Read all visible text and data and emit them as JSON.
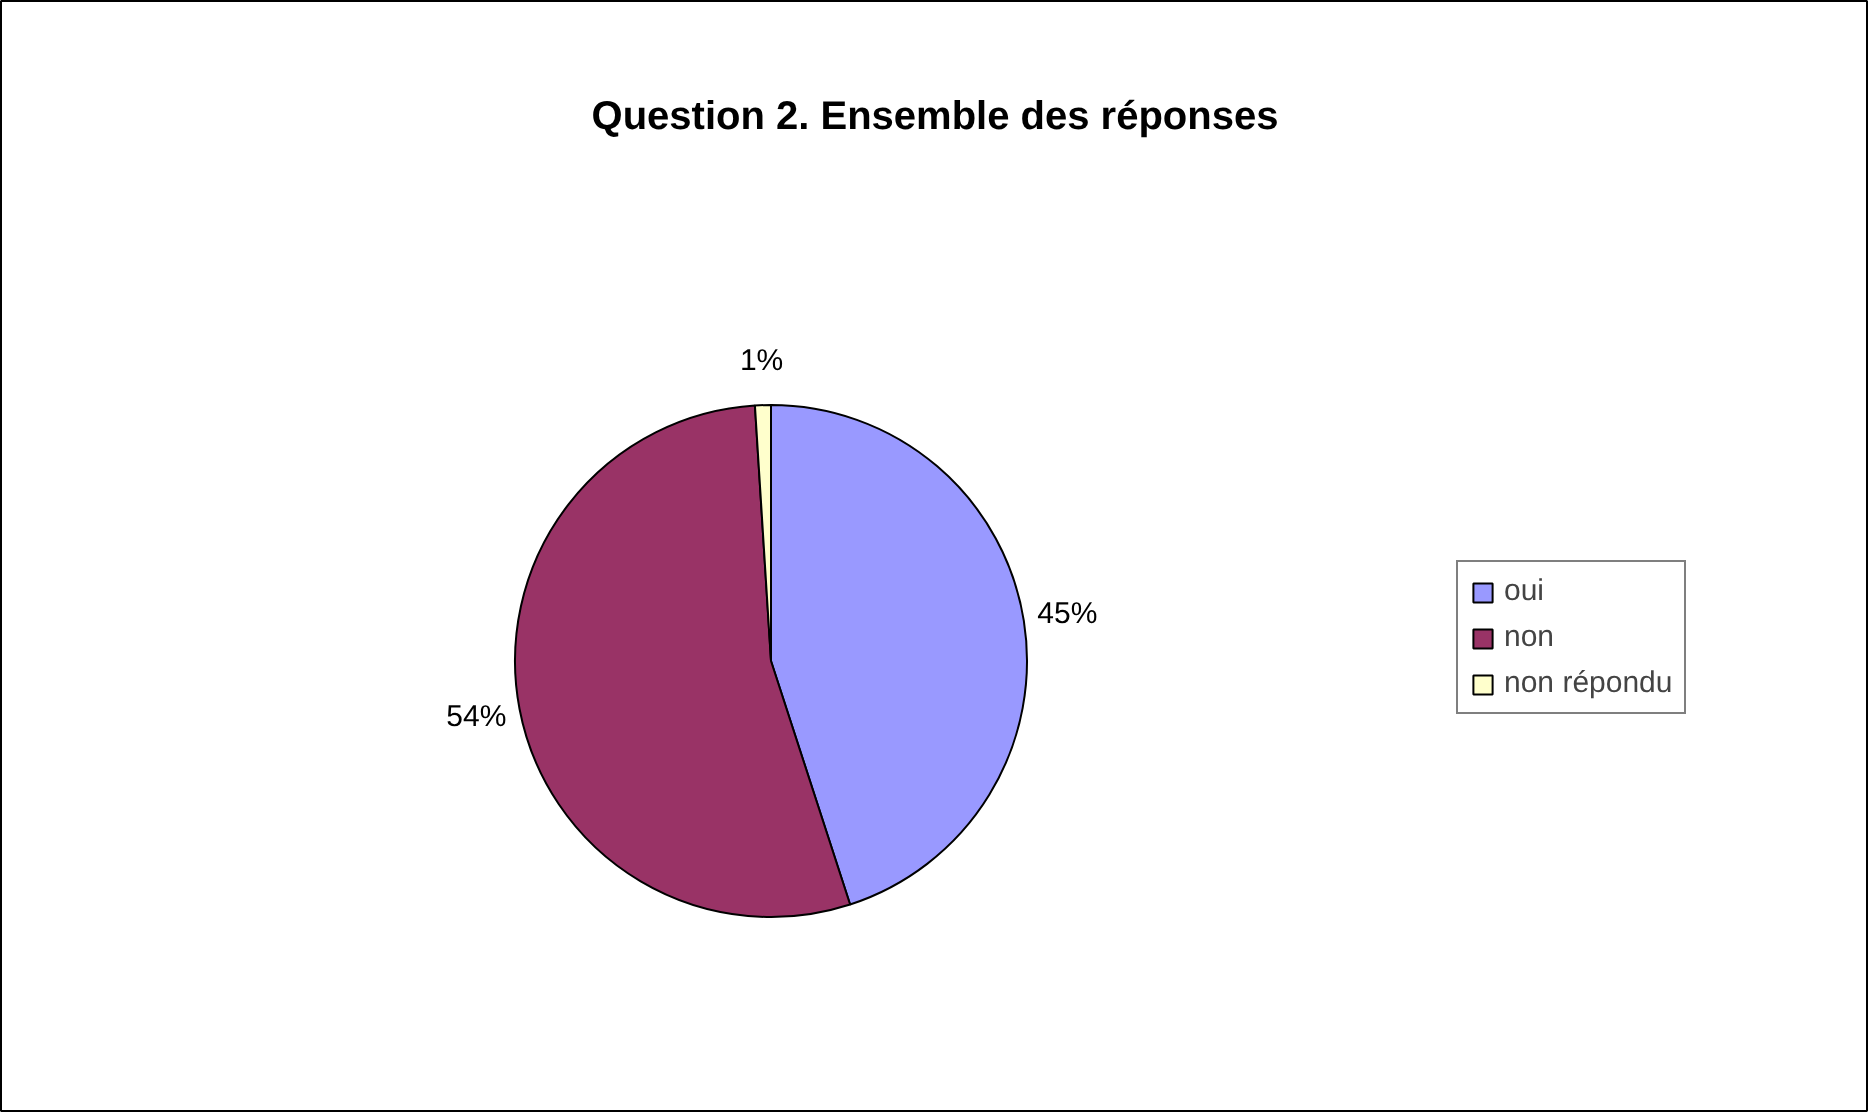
{
  "chart_data": {
    "type": "pie",
    "title": "Question 2. Ensemble des réponses",
    "categories": [
      "oui",
      "non",
      "non répondu"
    ],
    "values": [
      45,
      54,
      1
    ],
    "colors": [
      "#9999ff",
      "#993366",
      "#ffffcc"
    ],
    "value_labels": [
      "45%",
      "54%",
      "1%"
    ],
    "legend": "right"
  }
}
